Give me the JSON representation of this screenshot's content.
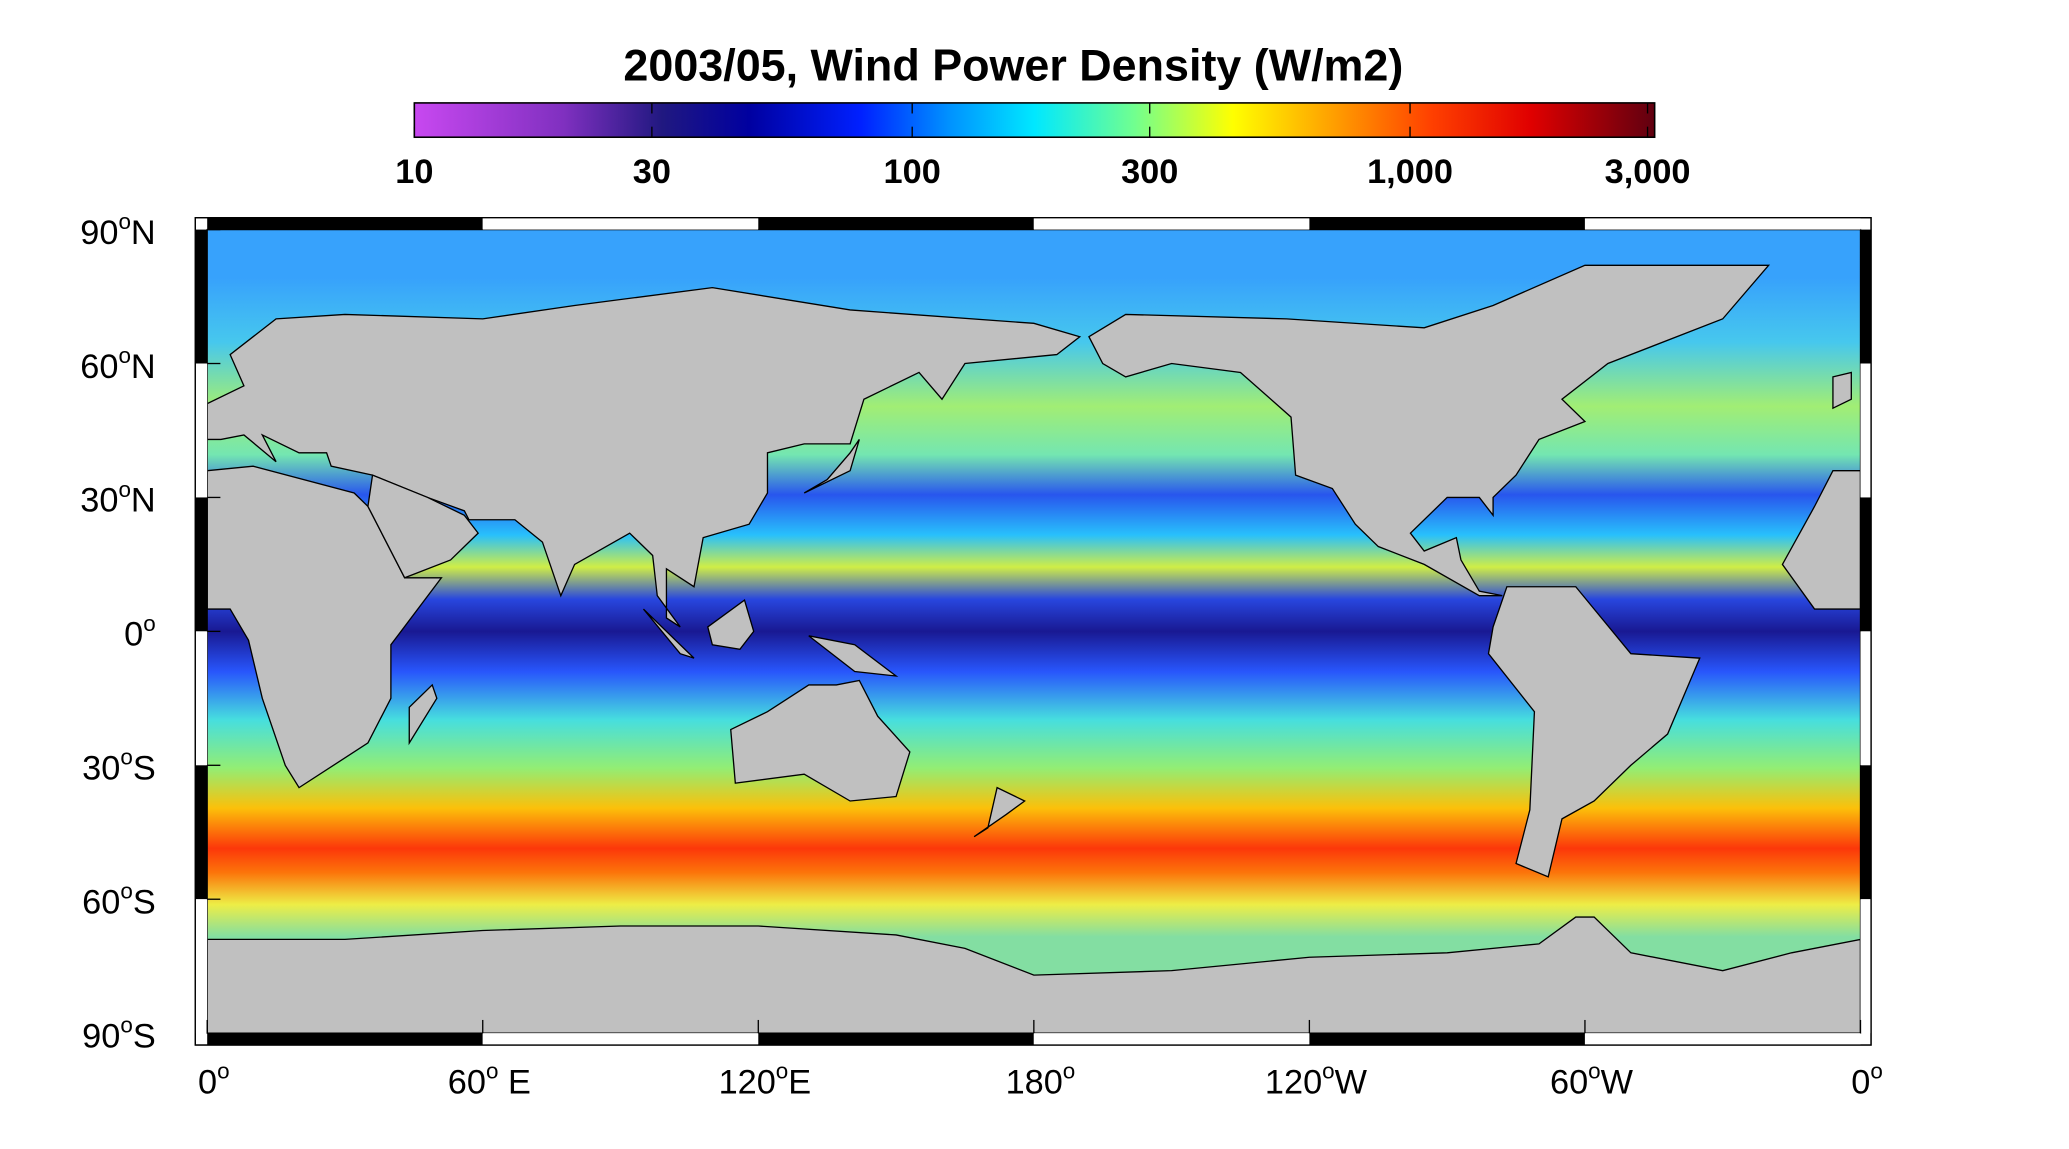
{
  "title": "2003/05, Wind Power Density (W/m2)",
  "colorbar": {
    "log": true,
    "lim": [
      10,
      3100
    ],
    "ticks": [
      10,
      30,
      100,
      300,
      {
        "value": 1000,
        "label": "1,000"
      },
      {
        "value": 3000,
        "label": "3,000"
      }
    ]
  },
  "map": {
    "xlim": [
      0,
      360
    ],
    "ylim": [
      -90,
      90
    ],
    "xticks": [
      {
        "value": 0,
        "label": [
          "0",
          "o"
        ]
      },
      {
        "value": 60,
        "label": [
          "60",
          "o",
          " E"
        ]
      },
      {
        "value": 120,
        "label": [
          "120",
          "o",
          "E"
        ]
      },
      {
        "value": 180,
        "label": [
          "180",
          "o"
        ]
      },
      {
        "value": 240,
        "label": [
          "120",
          "o",
          "W"
        ]
      },
      {
        "value": 300,
        "label": [
          "60",
          "o",
          "W"
        ]
      },
      {
        "value": 360,
        "label": [
          "0",
          "o"
        ]
      }
    ],
    "yticks": [
      {
        "value": 90,
        "label": [
          "90",
          "o",
          "N"
        ]
      },
      {
        "value": 60,
        "label": [
          "60",
          "o",
          "N"
        ]
      },
      {
        "value": 30,
        "label": [
          "30",
          "o",
          "N"
        ]
      },
      {
        "value": 0,
        "label": [
          "0",
          "o"
        ]
      },
      {
        "value": -30,
        "label": [
          "30",
          "o",
          "S"
        ]
      },
      {
        "value": -60,
        "label": [
          "60",
          "o",
          "S"
        ]
      },
      {
        "value": -90,
        "label": [
          "90",
          "o",
          "S"
        ]
      }
    ]
  }
}
